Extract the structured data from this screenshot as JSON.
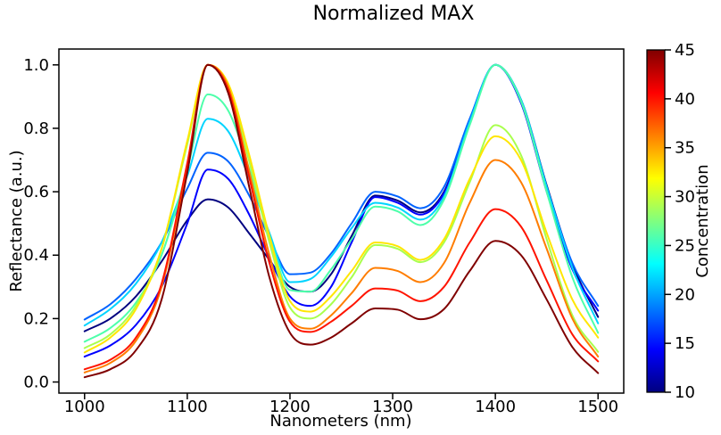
{
  "figure": {
    "background": "#ffffff"
  },
  "chart_data": {
    "type": "line",
    "title": "Normalized MAX",
    "xlabel": "Nanometers (nm)",
    "ylabel": "Reflectance (a.u.)",
    "grid": false,
    "legend_position": "colorbar-right",
    "xlim": [
      975,
      1525
    ],
    "ylim": [
      -0.035,
      1.05
    ],
    "xticks": [
      1000,
      1100,
      1200,
      1300,
      1400,
      1500
    ],
    "yticks": [
      0.0,
      0.2,
      0.4,
      0.6,
      0.8,
      1.0
    ],
    "ytick_labels": [
      "0.0",
      "0.2",
      "0.4",
      "0.6",
      "0.8",
      "1.0"
    ],
    "colorbar": {
      "label": "Concentration",
      "min": 10,
      "max": 45,
      "ticks": [
        10,
        15,
        20,
        25,
        30,
        35,
        40,
        45
      ],
      "colormap": "jet",
      "gradient": [
        {
          "t": 0.0,
          "color": "#000080"
        },
        {
          "t": 0.125,
          "color": "#0000FF"
        },
        {
          "t": 0.375,
          "color": "#00FFFF"
        },
        {
          "t": 0.625,
          "color": "#FFFF00"
        },
        {
          "t": 0.875,
          "color": "#FF0000"
        },
        {
          "t": 1.0,
          "color": "#800000"
        }
      ]
    },
    "x": [
      1000,
      1025,
      1050,
      1075,
      1100,
      1120,
      1140,
      1160,
      1180,
      1200,
      1220,
      1240,
      1260,
      1283,
      1305,
      1327,
      1350,
      1375,
      1400,
      1425,
      1450,
      1475,
      1500
    ],
    "series": [
      {
        "name": "concentration 10.0",
        "concentration": 10.0,
        "color": "#000080",
        "values": [
          0.16,
          0.2,
          0.27,
          0.38,
          0.51,
          0.576,
          0.55,
          0.47,
          0.385,
          0.3,
          0.285,
          0.34,
          0.46,
          0.588,
          0.572,
          0.535,
          0.6,
          0.82,
          1.0,
          0.89,
          0.62,
          0.37,
          0.205
        ]
      },
      {
        "name": "concentration 13.9",
        "concentration": 13.9,
        "color": "#0000FF",
        "values": [
          0.08,
          0.115,
          0.18,
          0.3,
          0.5,
          0.67,
          0.64,
          0.53,
          0.39,
          0.27,
          0.24,
          0.3,
          0.44,
          0.583,
          0.565,
          0.528,
          0.595,
          0.82,
          1.0,
          0.88,
          0.6,
          0.355,
          0.225
        ]
      },
      {
        "name": "concentration 17.8",
        "concentration": 17.8,
        "color": "#0063FF",
        "values": [
          0.197,
          0.245,
          0.325,
          0.44,
          0.61,
          0.723,
          0.695,
          0.59,
          0.455,
          0.34,
          0.345,
          0.405,
          0.5,
          0.6,
          0.585,
          0.548,
          0.615,
          0.83,
          1.0,
          0.885,
          0.615,
          0.375,
          0.24
        ]
      },
      {
        "name": "concentration 21.7",
        "concentration": 21.7,
        "color": "#00D4FF",
        "values": [
          0.178,
          0.23,
          0.31,
          0.44,
          0.65,
          0.83,
          0.79,
          0.645,
          0.47,
          0.315,
          0.325,
          0.395,
          0.485,
          0.565,
          0.55,
          0.512,
          0.585,
          0.82,
          1.0,
          0.89,
          0.615,
          0.36,
          0.185
        ]
      },
      {
        "name": "concentration 25.6",
        "concentration": 25.6,
        "color": "#4DFFAA",
        "values": [
          0.127,
          0.17,
          0.25,
          0.4,
          0.67,
          0.907,
          0.855,
          0.675,
          0.46,
          0.29,
          0.285,
          0.355,
          0.45,
          0.553,
          0.538,
          0.495,
          0.575,
          0.81,
          1.0,
          0.885,
          0.6,
          0.33,
          0.155
        ]
      },
      {
        "name": "concentration 29.4",
        "concentration": 29.4,
        "color": "#A9FF4D",
        "values": [
          0.107,
          0.15,
          0.24,
          0.42,
          0.75,
          1.0,
          0.93,
          0.7,
          0.44,
          0.235,
          0.2,
          0.245,
          0.33,
          0.432,
          0.42,
          0.378,
          0.44,
          0.63,
          0.81,
          0.715,
          0.45,
          0.21,
          0.095
        ]
      },
      {
        "name": "concentration 33.3",
        "concentration": 33.3,
        "color": "#FFE600",
        "values": [
          0.093,
          0.14,
          0.23,
          0.42,
          0.76,
          1.0,
          0.94,
          0.72,
          0.46,
          0.255,
          0.222,
          0.27,
          0.35,
          0.44,
          0.428,
          0.385,
          0.45,
          0.64,
          0.775,
          0.7,
          0.47,
          0.26,
          0.14
        ]
      },
      {
        "name": "concentration 37.2",
        "concentration": 37.2,
        "color": "#FF7D00",
        "values": [
          0.03,
          0.06,
          0.13,
          0.3,
          0.68,
          1.0,
          0.93,
          0.67,
          0.4,
          0.2,
          0.168,
          0.21,
          0.28,
          0.36,
          0.35,
          0.315,
          0.375,
          0.565,
          0.7,
          0.63,
          0.42,
          0.2,
          0.08
        ]
      },
      {
        "name": "concentration 41.1",
        "concentration": 41.1,
        "color": "#FF1400",
        "values": [
          0.04,
          0.07,
          0.14,
          0.31,
          0.69,
          1.0,
          0.92,
          0.65,
          0.375,
          0.19,
          0.158,
          0.19,
          0.24,
          0.295,
          0.288,
          0.255,
          0.3,
          0.44,
          0.545,
          0.49,
          0.32,
          0.15,
          0.065
        ]
      },
      {
        "name": "concentration 45.0",
        "concentration": 45.0,
        "color": "#800000",
        "values": [
          0.015,
          0.04,
          0.1,
          0.26,
          0.66,
          1.0,
          0.91,
          0.62,
          0.33,
          0.155,
          0.118,
          0.14,
          0.185,
          0.232,
          0.228,
          0.198,
          0.23,
          0.35,
          0.445,
          0.4,
          0.26,
          0.11,
          0.028
        ]
      }
    ]
  }
}
